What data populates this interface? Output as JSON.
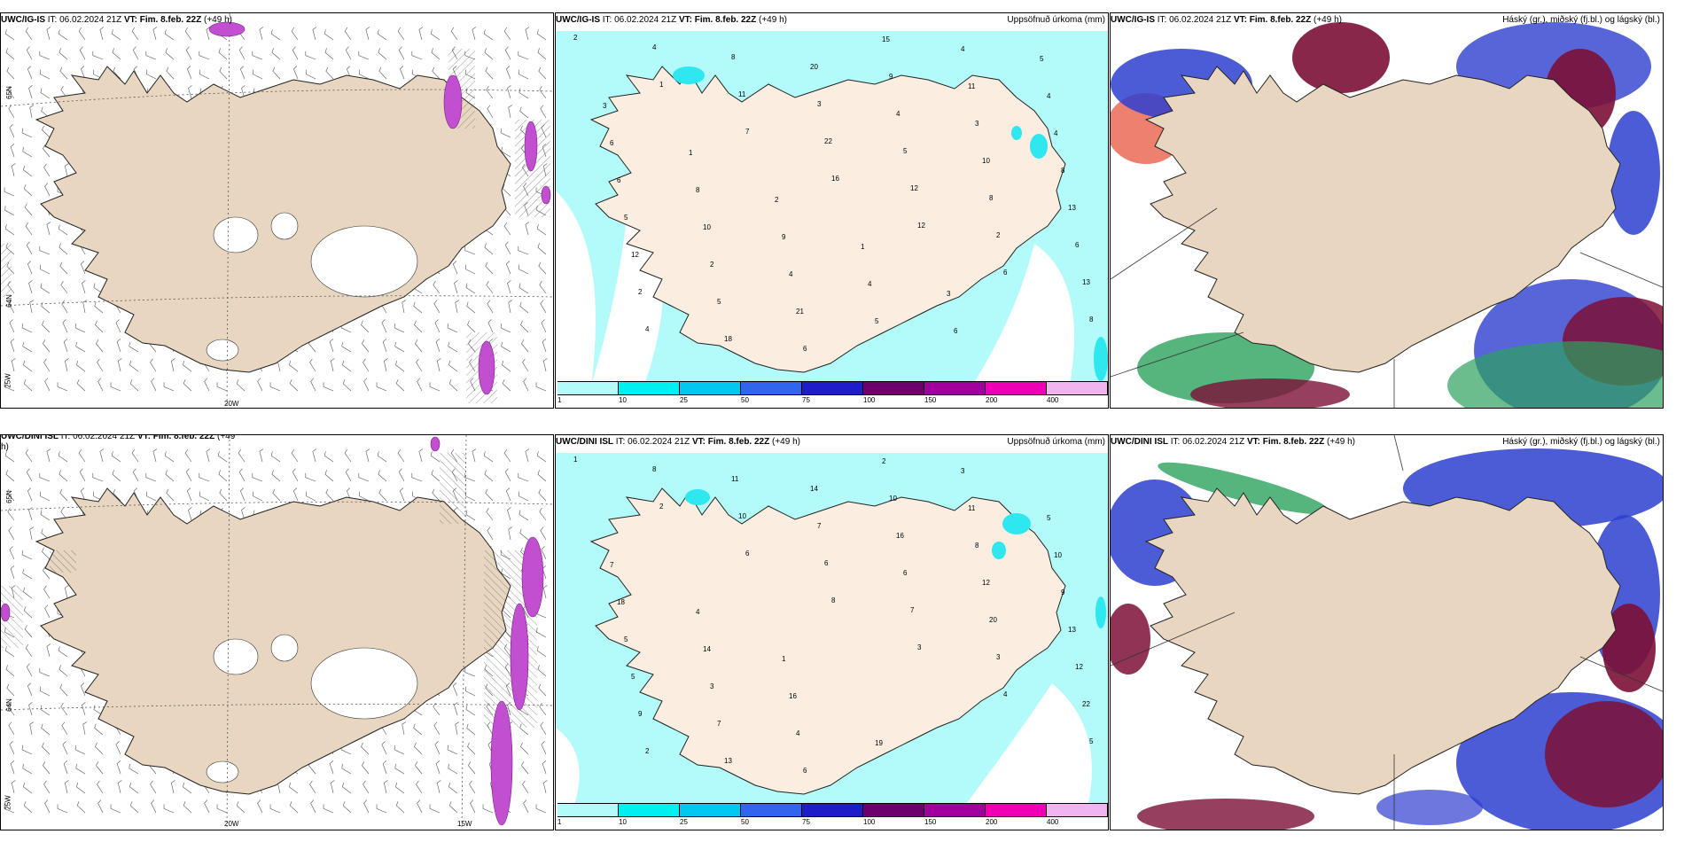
{
  "panels": [
    {
      "model": "UWC/IG-IS",
      "it_label": "IT:",
      "it": "06.02.2024 21Z",
      "vt_label": "VT: Fim. 8.feb. 22Z",
      "lead": "(+49 h)",
      "right": ""
    },
    {
      "model": "UWC/IG-IS",
      "it_label": "IT:",
      "it": "06.02.2024 21Z",
      "vt_label": "VT: Fim. 8.feb. 22Z",
      "lead": "(+49 h)",
      "right": "Uppsöfnuð úrkoma (mm)"
    },
    {
      "model": "UWC/IG-IS",
      "it_label": "IT:",
      "it": "06.02.2024 21Z",
      "vt_label": "VT: Fim. 8.feb. 22Z",
      "lead": "(+49 h)",
      "right": "Háský (gr.), miðský (fj.bl.) og lágský (bl.)"
    },
    {
      "model": "UWC/DINI ISL",
      "it_label": "IT:",
      "it": "06.02.2024 21Z",
      "vt_label": "VT: Fim. 8.feb. 22Z",
      "lead": "(+49",
      "right": ""
    },
    {
      "model": "UWC/DINI ISL",
      "it_label": "IT:",
      "it": "06.02.2024 21Z",
      "vt_label": "VT: Fim. 8.feb. 22Z",
      "lead": "(+49 h)",
      "right": "Uppsöfnuð úrkoma (mm)"
    },
    {
      "model": "UWC/DINI ISL",
      "it_label": "IT:",
      "it": "06.02.2024 21Z",
      "vt_label": "VT: Fim. 8.feb. 22Z",
      "lead": "(+49 h)",
      "right": "Háský (gr.), miðský (fj.bl.) og lágský (bl.)"
    }
  ],
  "wind_panel_extra": {
    "overflow_h": "h)"
  },
  "axis_labels": {
    "lat65": "65N",
    "lat64": "64N",
    "lon20": "20W",
    "lon15": "15W",
    "lon25": "25W"
  },
  "colorbar": {
    "labels": [
      "1",
      "10",
      "25",
      "50",
      "75",
      "100",
      "150",
      "200",
      "400"
    ],
    "colors": [
      "#b3fafa",
      "#00f0f0",
      "#00c8f0",
      "#3264f0",
      "#1e1ec8",
      "#6e006e",
      "#a0009b",
      "#f000b4",
      "#f0b4f0"
    ]
  },
  "colors": {
    "land": "#e8d6c1",
    "sea_precip": "#b3fafa",
    "precip_mid": "#2fe7ef",
    "cloud_high": "#2ca15c",
    "cloud_mid": "#7c0f36",
    "cloud_low": "#2d3fd0",
    "snow": "#ffffff",
    "ice_purple": "#c14fd0"
  },
  "precip_top_numbers": [
    "2",
    "1",
    "7",
    "16",
    "12",
    "6",
    "8",
    "4",
    "11",
    "22",
    "12",
    "2",
    "13",
    "4",
    "8",
    "3",
    "5",
    "8",
    "6",
    "2",
    "18",
    "20",
    "4",
    "10",
    "13",
    "12",
    "5",
    "6",
    "9",
    "3",
    "8",
    "5",
    "2",
    "21",
    "15",
    "11",
    "4",
    "6",
    "10",
    "4",
    "5",
    "4",
    "4",
    "6",
    "8",
    "9",
    "4",
    "6",
    "5",
    "3",
    "1",
    "2",
    "1",
    "3"
  ],
  "precip_bottom_numbers": [
    "1",
    "2",
    "6",
    "8",
    "3",
    "4",
    "5",
    "8",
    "10",
    "6",
    "7",
    "3",
    "22",
    "2",
    "11",
    "7",
    "6",
    "20",
    "12",
    "9",
    "13",
    "14",
    "16",
    "12",
    "13",
    "5",
    "7",
    "6",
    "10",
    "8",
    "9",
    "5",
    "3",
    "4",
    "2",
    "11",
    "10",
    "18",
    "14",
    "16",
    "19",
    "3",
    "5",
    "7",
    "4",
    "1"
  ]
}
